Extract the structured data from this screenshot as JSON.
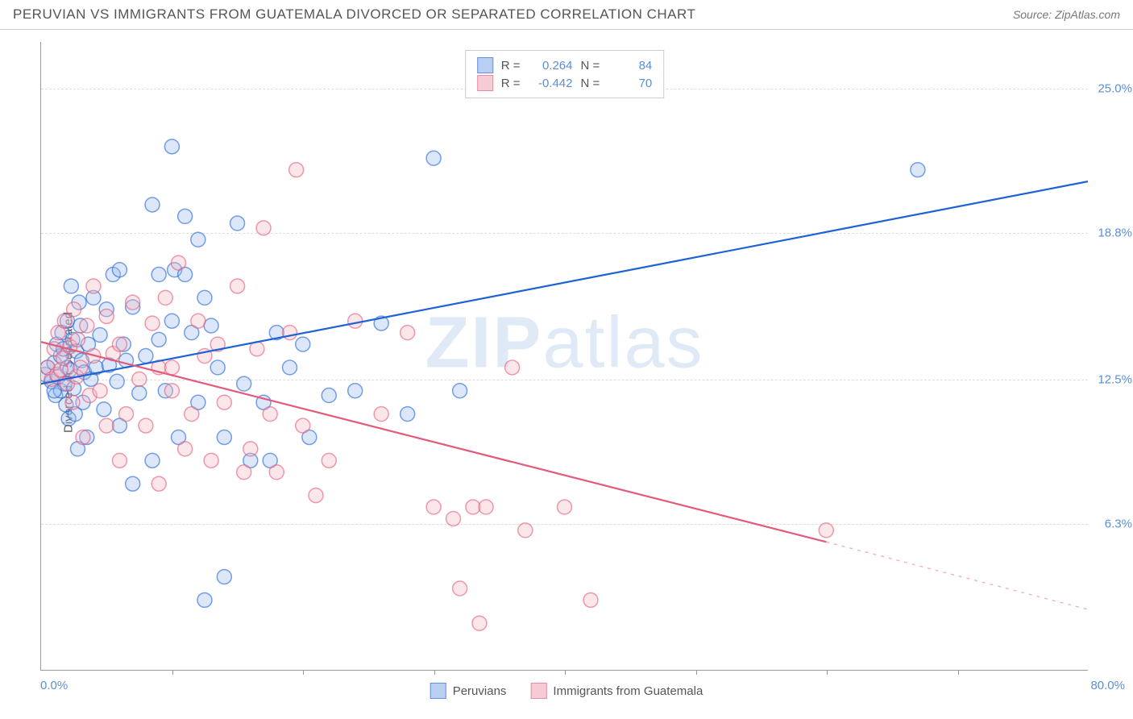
{
  "title": "PERUVIAN VS IMMIGRANTS FROM GUATEMALA DIVORCED OR SEPARATED CORRELATION CHART",
  "source_label": "Source:",
  "source_name": "ZipAtlas.com",
  "watermark_a": "ZIP",
  "watermark_b": "atlas",
  "chart": {
    "type": "scatter",
    "ylabel": "Divorced or Separated",
    "xlim": [
      0,
      80
    ],
    "ylim": [
      0,
      27
    ],
    "xticks": [
      0,
      80
    ],
    "xtick_labels": [
      "0.0%",
      "80.0%"
    ],
    "xgrid_positions": [
      10,
      20,
      30,
      40,
      50,
      60,
      70
    ],
    "yticks": [
      6.3,
      12.5,
      18.8,
      25.0
    ],
    "ytick_labels": [
      "6.3%",
      "12.5%",
      "18.8%",
      "25.0%"
    ],
    "background_color": "#ffffff",
    "grid_color": "#dddddd",
    "axis_color": "#999999",
    "tick_label_color": "#5b8fd6",
    "marker_radius": 9,
    "marker_fill_opacity": 0.35,
    "marker_stroke_width": 1.5,
    "line_width": 2.2,
    "series": [
      {
        "name": "Peruvians",
        "color_stroke": "#1f62d6",
        "color_fill": "#9cbced",
        "R": 0.264,
        "N": 84,
        "trend": {
          "x1": 0,
          "y1": 12.3,
          "x2": 80,
          "y2": 21.0,
          "dash_after_x": 80
        },
        "points": [
          [
            0.3,
            12.7
          ],
          [
            0.5,
            13.0
          ],
          [
            0.8,
            12.4
          ],
          [
            1.0,
            13.2
          ],
          [
            1.1,
            11.8
          ],
          [
            1.2,
            14.0
          ],
          [
            1.3,
            12.6
          ],
          [
            1.5,
            13.5
          ],
          [
            1.5,
            12.0
          ],
          [
            1.6,
            14.5
          ],
          [
            1.7,
            13.8
          ],
          [
            1.8,
            12.3
          ],
          [
            1.9,
            11.4
          ],
          [
            2.0,
            15.0
          ],
          [
            2.0,
            13.0
          ],
          [
            2.1,
            10.8
          ],
          [
            2.2,
            12.9
          ],
          [
            2.3,
            16.5
          ],
          [
            2.4,
            14.2
          ],
          [
            2.5,
            12.1
          ],
          [
            2.6,
            11.0
          ],
          [
            2.7,
            13.7
          ],
          [
            2.8,
            9.5
          ],
          [
            2.9,
            15.8
          ],
          [
            3.0,
            14.8
          ],
          [
            3.1,
            13.3
          ],
          [
            3.2,
            11.5
          ],
          [
            3.3,
            12.8
          ],
          [
            3.5,
            10.0
          ],
          [
            3.6,
            14.0
          ],
          [
            3.8,
            12.5
          ],
          [
            4.0,
            16.0
          ],
          [
            4.2,
            13.0
          ],
          [
            4.5,
            14.4
          ],
          [
            4.8,
            11.2
          ],
          [
            5.0,
            15.5
          ],
          [
            5.2,
            13.1
          ],
          [
            5.5,
            17.0
          ],
          [
            5.8,
            12.4
          ],
          [
            6.0,
            10.5
          ],
          [
            6.0,
            17.2
          ],
          [
            6.3,
            14.0
          ],
          [
            6.5,
            13.3
          ],
          [
            7.0,
            8.0
          ],
          [
            7.0,
            15.6
          ],
          [
            7.5,
            11.9
          ],
          [
            8.0,
            13.5
          ],
          [
            8.5,
            20.0
          ],
          [
            8.5,
            9.0
          ],
          [
            9.0,
            17.0
          ],
          [
            9.0,
            14.2
          ],
          [
            9.5,
            12.0
          ],
          [
            10.0,
            15.0
          ],
          [
            10.0,
            22.5
          ],
          [
            10.2,
            17.2
          ],
          [
            10.5,
            10.0
          ],
          [
            11.0,
            19.5
          ],
          [
            11.0,
            17.0
          ],
          [
            11.5,
            14.5
          ],
          [
            12.0,
            18.5
          ],
          [
            12.0,
            11.5
          ],
          [
            12.5,
            16.0
          ],
          [
            12.5,
            3.0
          ],
          [
            13.0,
            14.8
          ],
          [
            13.5,
            13.0
          ],
          [
            14.0,
            4.0
          ],
          [
            14.0,
            10.0
          ],
          [
            15.0,
            19.2
          ],
          [
            15.5,
            12.3
          ],
          [
            16.0,
            9.0
          ],
          [
            17.0,
            11.5
          ],
          [
            17.5,
            9.0
          ],
          [
            18.0,
            14.5
          ],
          [
            19.0,
            13.0
          ],
          [
            20.0,
            14.0
          ],
          [
            20.5,
            10.0
          ],
          [
            22.0,
            11.8
          ],
          [
            24.0,
            12.0
          ],
          [
            26.0,
            14.9
          ],
          [
            28.0,
            11.0
          ],
          [
            30.0,
            22.0
          ],
          [
            32.0,
            12.0
          ],
          [
            67.0,
            21.5
          ],
          [
            1.0,
            12.0
          ]
        ]
      },
      {
        "name": "Immigrants from Guatemala",
        "color_stroke": "#e35a7a",
        "color_fill": "#f4b6c4",
        "R": -0.442,
        "N": 70,
        "trend": {
          "x1": 0,
          "y1": 14.1,
          "x2": 60,
          "y2": 5.5,
          "dash_after_x": 60,
          "x3": 80,
          "y3": 2.6
        },
        "points": [
          [
            0.5,
            13.0
          ],
          [
            0.8,
            12.5
          ],
          [
            1.0,
            13.8
          ],
          [
            1.2,
            12.7
          ],
          [
            1.3,
            14.5
          ],
          [
            1.5,
            12.9
          ],
          [
            1.7,
            13.4
          ],
          [
            1.8,
            15.0
          ],
          [
            2.0,
            12.3
          ],
          [
            2.2,
            13.9
          ],
          [
            2.4,
            11.5
          ],
          [
            2.5,
            15.5
          ],
          [
            2.7,
            12.6
          ],
          [
            2.8,
            14.2
          ],
          [
            3.0,
            13.0
          ],
          [
            3.2,
            10.0
          ],
          [
            3.5,
            14.8
          ],
          [
            3.7,
            11.8
          ],
          [
            4.0,
            13.5
          ],
          [
            4.0,
            16.5
          ],
          [
            4.5,
            12.0
          ],
          [
            5.0,
            15.2
          ],
          [
            5.0,
            10.5
          ],
          [
            5.5,
            13.6
          ],
          [
            6.0,
            9.0
          ],
          [
            6.0,
            14.0
          ],
          [
            6.5,
            11.0
          ],
          [
            7.0,
            15.8
          ],
          [
            7.5,
            12.5
          ],
          [
            8.0,
            10.5
          ],
          [
            8.5,
            14.9
          ],
          [
            9.0,
            13.0
          ],
          [
            9.0,
            8.0
          ],
          [
            9.5,
            16.0
          ],
          [
            10.0,
            12.0
          ],
          [
            10.5,
            17.5
          ],
          [
            11.0,
            9.5
          ],
          [
            11.5,
            11.0
          ],
          [
            12.0,
            15.0
          ],
          [
            12.5,
            13.5
          ],
          [
            13.0,
            9.0
          ],
          [
            13.5,
            14.0
          ],
          [
            14.0,
            11.5
          ],
          [
            15.0,
            16.5
          ],
          [
            15.5,
            8.5
          ],
          [
            16.0,
            9.5
          ],
          [
            16.5,
            13.8
          ],
          [
            17.0,
            19.0
          ],
          [
            17.5,
            11.0
          ],
          [
            18.0,
            8.5
          ],
          [
            19.0,
            14.5
          ],
          [
            19.5,
            21.5
          ],
          [
            20.0,
            10.5
          ],
          [
            21.0,
            7.5
          ],
          [
            22.0,
            9.0
          ],
          [
            24.0,
            15.0
          ],
          [
            26.0,
            11.0
          ],
          [
            28.0,
            14.5
          ],
          [
            30.0,
            7.0
          ],
          [
            31.5,
            6.5
          ],
          [
            32.0,
            3.5
          ],
          [
            33.0,
            7.0
          ],
          [
            33.5,
            2.0
          ],
          [
            34.0,
            7.0
          ],
          [
            36.0,
            13.0
          ],
          [
            37.0,
            6.0
          ],
          [
            40.0,
            7.0
          ],
          [
            42.0,
            3.0
          ],
          [
            60.0,
            6.0
          ],
          [
            10.0,
            13.0
          ]
        ]
      }
    ],
    "legend_top": {
      "R_label": "R =",
      "N_label": "N ="
    },
    "legend_bottom": [
      "Peruvians",
      "Immigrants from Guatemala"
    ]
  }
}
